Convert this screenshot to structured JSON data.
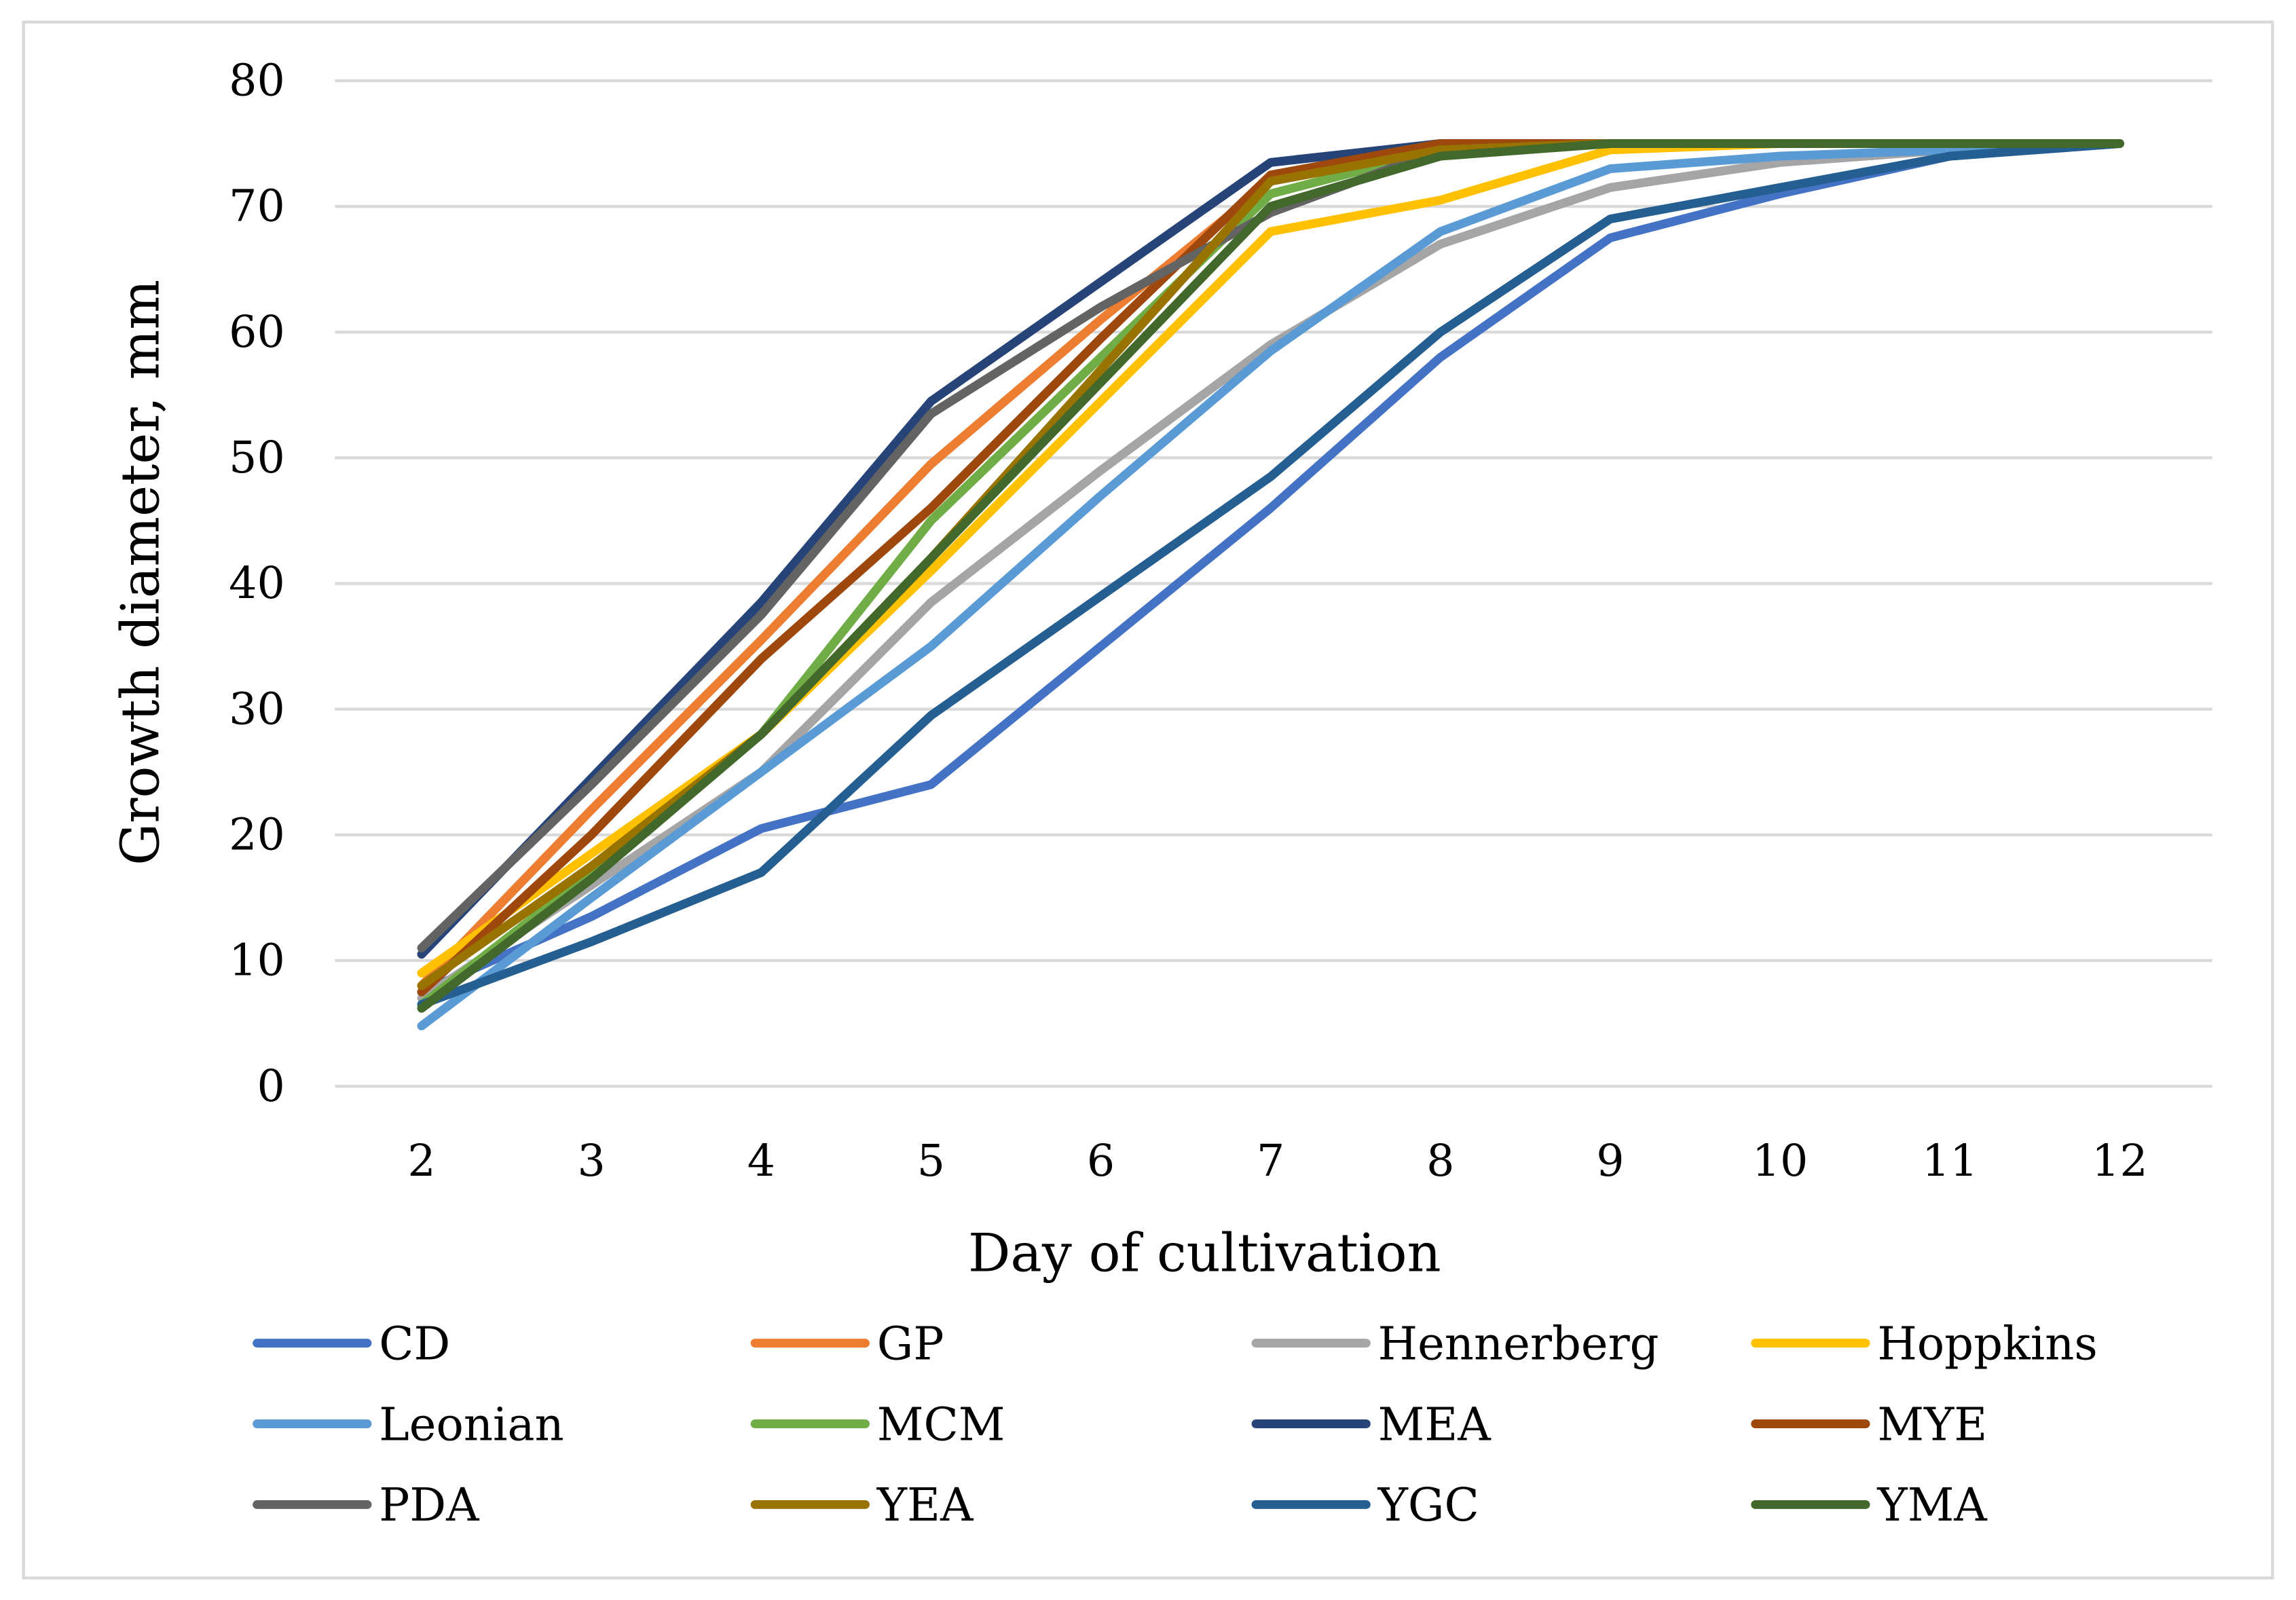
{
  "chart_data": {
    "type": "line",
    "title": "",
    "xlabel": "Day of cultivation",
    "ylabel": "Growth diameter, mm",
    "x": [
      2,
      3,
      4,
      5,
      6,
      7,
      8,
      9,
      10,
      11,
      12
    ],
    "ylim": [
      0,
      80
    ],
    "yticks": [
      0,
      10,
      20,
      30,
      40,
      50,
      60,
      70,
      80
    ],
    "grid": true,
    "legend_position": "bottom",
    "series": [
      {
        "name": "CD",
        "color": "#4472C4",
        "values": [
          7.5,
          13.5,
          20.5,
          24,
          35,
          46,
          58,
          67.5,
          71,
          74,
          75
        ]
      },
      {
        "name": "GP",
        "color": "#ED7D31",
        "values": [
          8,
          22,
          35.5,
          49.5,
          61,
          72,
          75,
          75,
          75,
          75,
          75
        ]
      },
      {
        "name": "Hennerberg",
        "color": "#A5A5A5",
        "values": [
          7,
          16,
          25,
          38.5,
          49,
          59,
          67,
          71.5,
          73.5,
          74.5,
          75
        ]
      },
      {
        "name": "Hoppkins",
        "color": "#FFC000",
        "values": [
          9,
          18.5,
          28,
          41,
          54.5,
          68,
          70.5,
          74.5,
          75,
          75,
          75
        ]
      },
      {
        "name": "Leonian",
        "color": "#5B9BD5",
        "values": [
          4.8,
          15,
          25,
          35,
          47,
          58.5,
          68,
          73,
          74,
          74.5,
          75
        ]
      },
      {
        "name": "MCM",
        "color": "#70AD47",
        "values": [
          6.5,
          17,
          28,
          45,
          58,
          71,
          74.5,
          75,
          75,
          75,
          75
        ]
      },
      {
        "name": "MEA",
        "color": "#264478",
        "values": [
          10.5,
          24.5,
          38.5,
          54.5,
          64,
          73.5,
          75,
          75,
          75,
          75,
          75
        ]
      },
      {
        "name": "MYE",
        "color": "#9E480E",
        "values": [
          7.5,
          20,
          34,
          46,
          59.5,
          72.5,
          75,
          75,
          75,
          75,
          75
        ]
      },
      {
        "name": "PDA",
        "color": "#636363",
        "values": [
          11,
          24,
          37.5,
          53.5,
          62,
          69.5,
          74.5,
          75,
          75,
          75,
          75
        ]
      },
      {
        "name": "YEA",
        "color": "#997300",
        "values": [
          8,
          17.5,
          28,
          42,
          57,
          72,
          74.5,
          75,
          75,
          75,
          75
        ]
      },
      {
        "name": "YGC",
        "color": "#255E91",
        "values": [
          6.5,
          11.5,
          17,
          29.5,
          39,
          48.5,
          60,
          69,
          71.5,
          74,
          75
        ]
      },
      {
        "name": "YMA",
        "color": "#43682B",
        "values": [
          6.2,
          16.5,
          28,
          42,
          56,
          70,
          74,
          75,
          75,
          75,
          75
        ]
      }
    ]
  }
}
